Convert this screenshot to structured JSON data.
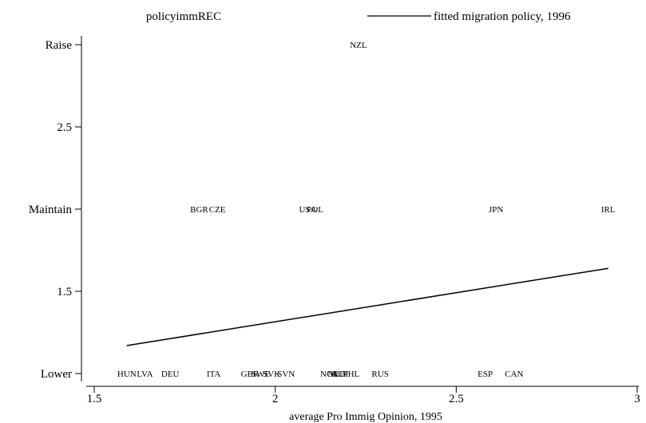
{
  "chart_data": {
    "type": "scatter",
    "xlabel": "average Pro Immig Opinion, 1995",
    "ylabel": "",
    "xlim": [
      1.5,
      3
    ],
    "ylim": [
      1,
      3
    ],
    "x_ticks": [
      {
        "value": 1.5,
        "label": "1.5"
      },
      {
        "value": 2,
        "label": "2"
      },
      {
        "value": 2.5,
        "label": "2.5"
      },
      {
        "value": 3,
        "label": "3"
      }
    ],
    "y_ticks": [
      {
        "value": 1,
        "label": "Lower"
      },
      {
        "value": 1.5,
        "label": "1.5"
      },
      {
        "value": 2,
        "label": "Maintain"
      },
      {
        "value": 2.5,
        "label": "2.5"
      },
      {
        "value": 3,
        "label": "Raise"
      }
    ],
    "legend": [
      {
        "label": "policyimmREC",
        "marker": "none"
      },
      {
        "label": "fitted migration policy, 1996",
        "marker": "line"
      }
    ],
    "series": [
      {
        "name": "policyimmREC",
        "style": "marker-labels",
        "points": [
          {
            "label": "NZL",
            "x": 2.23,
            "y": 3
          },
          {
            "label": "BGR",
            "x": 1.79,
            "y": 2
          },
          {
            "label": "CZE",
            "x": 1.84,
            "y": 2
          },
          {
            "label": "USA",
            "x": 2.09,
            "y": 2
          },
          {
            "label": "POL",
            "x": 2.11,
            "y": 2
          },
          {
            "label": "JPN",
            "x": 2.61,
            "y": 2
          },
          {
            "label": "IRL",
            "x": 2.92,
            "y": 2
          },
          {
            "label": "HUN",
            "x": 1.59,
            "y": 1
          },
          {
            "label": "LVA",
            "x": 1.64,
            "y": 1
          },
          {
            "label": "DEU",
            "x": 1.71,
            "y": 1
          },
          {
            "label": "ITA",
            "x": 1.83,
            "y": 1
          },
          {
            "label": "GBR",
            "x": 1.93,
            "y": 1
          },
          {
            "label": "SWE",
            "x": 1.96,
            "y": 1
          },
          {
            "label": "SVK",
            "x": 1.99,
            "y": 1
          },
          {
            "label": "SVN",
            "x": 2.03,
            "y": 1
          },
          {
            "label": "NOR",
            "x": 2.15,
            "y": 1
          },
          {
            "label": "NLD",
            "x": 2.17,
            "y": 1
          },
          {
            "label": "AUT",
            "x": 2.18,
            "y": 1
          },
          {
            "label": "PHL",
            "x": 2.21,
            "y": 1
          },
          {
            "label": "RUS",
            "x": 2.29,
            "y": 1
          },
          {
            "label": "ESP",
            "x": 2.58,
            "y": 1
          },
          {
            "label": "CAN",
            "x": 2.66,
            "y": 1
          }
        ]
      },
      {
        "name": "fitted migration policy, 1996",
        "style": "line",
        "points": [
          {
            "x": 1.59,
            "y": 1.17
          },
          {
            "x": 2.92,
            "y": 1.64
          }
        ]
      }
    ],
    "grid": false,
    "legend_position": "top"
  }
}
